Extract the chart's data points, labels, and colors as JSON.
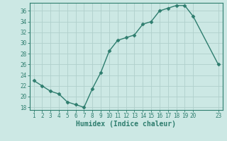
{
  "x": [
    1,
    2,
    3,
    4,
    5,
    6,
    7,
    8,
    9,
    10,
    11,
    12,
    13,
    14,
    15,
    16,
    17,
    18,
    19,
    20,
    23
  ],
  "y": [
    23,
    22,
    21,
    20.5,
    19,
    18.5,
    18,
    21.5,
    24.5,
    28.5,
    30.5,
    31,
    31.5,
    33.5,
    34,
    36,
    36.5,
    37,
    37,
    35,
    26
  ],
  "line_color": "#2e7d6e",
  "marker": "D",
  "marker_size": 2.5,
  "bg_color": "#cce8e4",
  "grid_color": "#b0d0cc",
  "xlabel": "Humidex (Indice chaleur)",
  "xlim": [
    0.5,
    23.5
  ],
  "ylim": [
    17.5,
    37.5
  ],
  "yticks": [
    18,
    20,
    22,
    24,
    26,
    28,
    30,
    32,
    34,
    36
  ],
  "xticks": [
    1,
    2,
    3,
    4,
    5,
    6,
    7,
    8,
    9,
    10,
    11,
    12,
    13,
    14,
    15,
    16,
    17,
    18,
    19,
    20,
    23
  ],
  "axis_color": "#2e7d6e",
  "tick_fontsize": 5.5,
  "xlabel_fontsize": 7,
  "linewidth": 1.0
}
